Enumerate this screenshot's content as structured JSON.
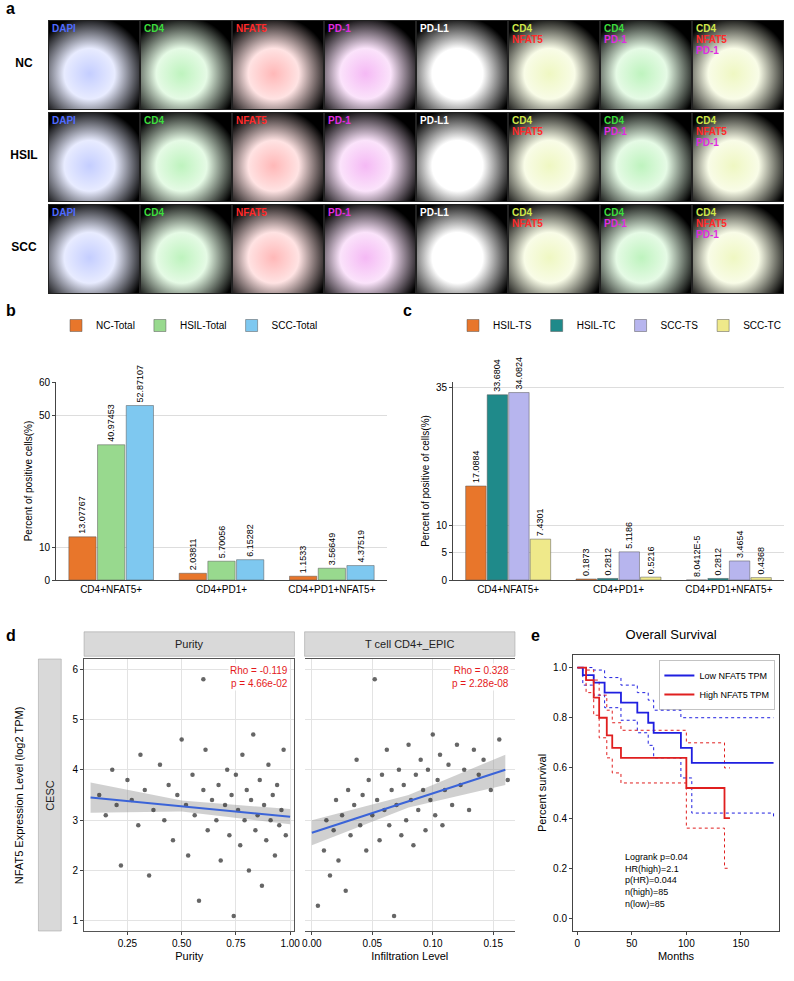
{
  "panel_a": {
    "letter": "a",
    "rows": [
      "NC",
      "HSIL",
      "SCC"
    ],
    "columns": [
      [
        {
          "text": "DAPI",
          "color": "#4f6bff"
        }
      ],
      [
        {
          "text": "CD4",
          "color": "#3ddc3d"
        }
      ],
      [
        {
          "text": "NFAT5",
          "color": "#ff2a2a"
        }
      ],
      [
        {
          "text": "PD-1",
          "color": "#e02de0"
        }
      ],
      [
        {
          "text": "PD-L1",
          "color": "#ffffff"
        }
      ],
      [
        {
          "text": "CD4",
          "color": "#cfe84a"
        },
        {
          "text": "NFAT5",
          "color": "#ff2a2a"
        }
      ],
      [
        {
          "text": "CD4",
          "color": "#3ddc3d"
        },
        {
          "text": "PD-1",
          "color": "#e02de0"
        }
      ],
      [
        {
          "text": "CD4",
          "color": "#cfe84a"
        },
        {
          "text": "NFAT5",
          "color": "#ff2a2a"
        },
        {
          "text": "PD-1",
          "color": "#e02de0"
        }
      ]
    ]
  },
  "chart_data": [
    {
      "type": "bar",
      "letter": "b",
      "ylabel": "Percent of positive cells(%)",
      "categories": [
        "CD4+NFAT5+",
        "CD4+PD1+",
        "CD4+PD1+NFAT5+"
      ],
      "series": [
        {
          "name": "NC-Total",
          "color": "#e8762b",
          "values": [
            13.07767,
            2.03811,
            1.1533
          ]
        },
        {
          "name": "HSIL-Total",
          "color": "#98d98e",
          "values": [
            40.97453,
            5.70056,
            3.56649
          ]
        },
        {
          "name": "SCC-Total",
          "color": "#7ec8f0",
          "values": [
            52.87107,
            6.15282,
            4.37519
          ]
        }
      ],
      "ylim": [
        0,
        60
      ],
      "yticks": [
        0,
        10,
        50,
        60
      ],
      "grid": true,
      "legend": "top",
      "data_labels": true
    },
    {
      "type": "bar",
      "letter": "c",
      "ylabel": "Percent of positive of cells(%)",
      "categories": [
        "CD4+NFAT5+",
        "CD4+PD1+",
        "CD4+PD1+NFAT5+"
      ],
      "series": [
        {
          "name": "HSIL-TS",
          "color": "#e8762b",
          "values": [
            17.0884,
            0.1873,
            8.0412e-05
          ],
          "value_labels": [
            "17.0884",
            "0.1873",
            "8.0412E-5"
          ]
        },
        {
          "name": "HSIL-TC",
          "color": "#1f8a8a",
          "values": [
            33.6804,
            0.2812,
            0.2812
          ]
        },
        {
          "name": "SCC-TS",
          "color": "#b7b5ee",
          "values": [
            34.0824,
            5.1186,
            3.4654
          ]
        },
        {
          "name": "SCC-TC",
          "color": "#efe98a",
          "values": [
            7.4301,
            0.5216,
            0.4368
          ]
        }
      ],
      "ylim": [
        0,
        36
      ],
      "yticks": [
        0,
        5,
        10,
        35
      ],
      "grid": true,
      "legend": "top",
      "data_labels": true
    },
    {
      "type": "scatter",
      "letter": "d",
      "ylabel": "NFAT5 Expression Level (log2 TPM)",
      "strip": "CESC",
      "ylim": [
        0.8,
        6.2
      ],
      "yticks": [
        1,
        2,
        3,
        4,
        5,
        6
      ],
      "grid": true,
      "color": "#333333",
      "facets": [
        {
          "title": "Purity",
          "xlabel": "Purity",
          "xlim": [
            0.05,
            1.02
          ],
          "xticks": [
            0.25,
            {
              "value": 0.5,
              "label": "0.50"
            },
            0.75,
            {
              "value": 1,
              "label": "1.00"
            }
          ],
          "rho_label": "Rho = -0.119",
          "p_label": "p = 4.66e-02",
          "x": [
            0.12,
            0.15,
            0.18,
            0.2,
            0.22,
            0.25,
            0.27,
            0.3,
            0.31,
            0.33,
            0.35,
            0.37,
            0.4,
            0.42,
            0.44,
            0.46,
            0.48,
            0.5,
            0.52,
            0.53,
            0.55,
            0.56,
            0.58,
            0.6,
            0.61,
            0.62,
            0.64,
            0.6,
            0.66,
            0.67,
            0.68,
            0.7,
            0.71,
            0.72,
            0.73,
            0.74,
            0.75,
            0.76,
            0.77,
            0.78,
            0.79,
            0.8,
            0.81,
            0.82,
            0.83,
            0.84,
            0.85,
            0.86,
            0.87,
            0.88,
            0.89,
            0.9,
            0.91,
            0.92,
            0.93,
            0.94,
            0.95,
            0.96,
            0.97,
            0.98
          ],
          "y": [
            3.5,
            3.1,
            4.0,
            3.3,
            2.1,
            3.8,
            3.4,
            2.9,
            4.3,
            3.6,
            1.9,
            3.2,
            4.1,
            3.0,
            3.7,
            2.6,
            3.5,
            4.6,
            3.3,
            2.3,
            3.9,
            3.1,
            1.4,
            3.6,
            4.4,
            2.8,
            3.4,
            5.8,
            3.0,
            3.7,
            2.2,
            3.3,
            4.0,
            2.7,
            3.5,
            1.1,
            3.9,
            3.2,
            2.5,
            4.3,
            3.0,
            3.6,
            2.0,
            3.4,
            4.7,
            2.8,
            3.1,
            3.8,
            1.7,
            3.3,
            2.6,
            4.1,
            3.0,
            3.5,
            2.3,
            3.7,
            2.9,
            3.2,
            4.4,
            2.7
          ],
          "fit": {
            "x": [
              0.08,
              0.5,
              1.0
            ],
            "y": [
              3.45,
              3.28,
              3.07
            ],
            "lower": [
              3.15,
              3.17,
              2.92
            ],
            "upper": [
              3.75,
              3.39,
              3.22
            ]
          }
        },
        {
          "title": "T cell CD4+_EPIC",
          "xlabel": "Infiltration Level",
          "xlim": [
            -0.006,
            0.168
          ],
          "xticks": [
            {
              "value": 0,
              "label": "0.00"
            },
            0.05,
            {
              "value": 0.1,
              "label": "0.10"
            },
            0.15
          ],
          "rho_label": "Rho = 0.328",
          "p_label": "p = 2.28e-08",
          "x": [
            0.005,
            0.01,
            0.012,
            0.015,
            0.018,
            0.02,
            0.022,
            0.025,
            0.028,
            0.03,
            0.032,
            0.035,
            0.037,
            0.04,
            0.042,
            0.045,
            0.047,
            0.05,
            0.052,
            0.054,
            0.056,
            0.058,
            0.06,
            0.062,
            0.064,
            0.066,
            0.068,
            0.07,
            0.072,
            0.074,
            0.076,
            0.078,
            0.08,
            0.082,
            0.084,
            0.086,
            0.088,
            0.09,
            0.092,
            0.094,
            0.096,
            0.098,
            0.1,
            0.102,
            0.104,
            0.106,
            0.108,
            0.11,
            0.113,
            0.116,
            0.12,
            0.123,
            0.126,
            0.13,
            0.134,
            0.138,
            0.142,
            0.148,
            0.155,
            0.162
          ],
          "y": [
            1.3,
            2.4,
            3.0,
            1.9,
            2.8,
            3.4,
            2.2,
            3.1,
            1.6,
            3.6,
            2.7,
            3.3,
            4.2,
            2.9,
            3.5,
            2.4,
            3.8,
            3.1,
            5.8,
            3.4,
            2.6,
            3.9,
            3.2,
            4.4,
            2.9,
            3.6,
            1.1,
            3.3,
            4.0,
            2.7,
            3.7,
            3.0,
            4.5,
            3.4,
            2.5,
            3.9,
            3.2,
            4.2,
            3.6,
            2.8,
            4.0,
            3.4,
            4.7,
            3.1,
            3.8,
            4.3,
            2.9,
            3.6,
            4.1,
            3.3,
            4.5,
            3.7,
            4.0,
            3.2,
            4.4,
            3.9,
            4.2,
            3.6,
            4.6,
            3.8
          ],
          "fit": {
            "x": [
              0,
              0.08,
              0.16
            ],
            "y": [
              2.75,
              3.38,
              4.0
            ],
            "lower": [
              2.5,
              3.25,
              3.7
            ],
            "upper": [
              3.0,
              3.5,
              4.3
            ]
          }
        }
      ]
    },
    {
      "type": "line",
      "letter": "e",
      "title": "Overall Survival",
      "xlabel": "Months",
      "ylabel": "Percent survival",
      "xlim": [
        -4,
        185
      ],
      "xticks": [
        0,
        50,
        100,
        150
      ],
      "ylim": [
        -0.05,
        1.05
      ],
      "yticks": [
        {
          "value": 0,
          "label": "0.0"
        },
        0.2,
        0.4,
        0.6,
        0.8,
        {
          "value": 1,
          "label": "1.0"
        }
      ],
      "legend": "top right",
      "annotations": [
        "Logrank p=0.04",
        "HR(high)=2.1",
        "p(HR)=0.044",
        "n(high)=85",
        "n(low)=85"
      ],
      "series": [
        {
          "name": "Low NFAT5 TPM",
          "color": "#1f1fe0",
          "line_style": "solid",
          "x": [
            0,
            5,
            15,
            25,
            40,
            55,
            65,
            70,
            95,
            105,
            180
          ],
          "values": [
            1,
            0.97,
            0.94,
            0.9,
            0.86,
            0.82,
            0.78,
            0.74,
            0.68,
            0.62,
            0.62
          ],
          "lower": [
            1,
            0.93,
            0.89,
            0.84,
            0.79,
            0.74,
            0.69,
            0.64,
            0.56,
            0.42,
            0.4
          ],
          "upper": [
            1,
            1,
            0.99,
            0.96,
            0.93,
            0.9,
            0.87,
            0.83,
            0.8,
            0.8,
            0.8
          ]
        },
        {
          "name": "High NFAT5 TPM",
          "color": "#e01f1f",
          "line_style": "solid",
          "x": [
            0,
            8,
            15,
            20,
            27,
            32,
            40,
            100,
            135,
            140
          ],
          "values": [
            1,
            0.95,
            0.88,
            0.8,
            0.73,
            0.68,
            0.64,
            0.52,
            0.4,
            0.4
          ],
          "lower": [
            1,
            0.9,
            0.81,
            0.72,
            0.64,
            0.58,
            0.54,
            0.36,
            0.2,
            0.2
          ],
          "upper": [
            1,
            0.99,
            0.95,
            0.89,
            0.83,
            0.78,
            0.75,
            0.7,
            0.6,
            0.6
          ]
        }
      ]
    }
  ]
}
